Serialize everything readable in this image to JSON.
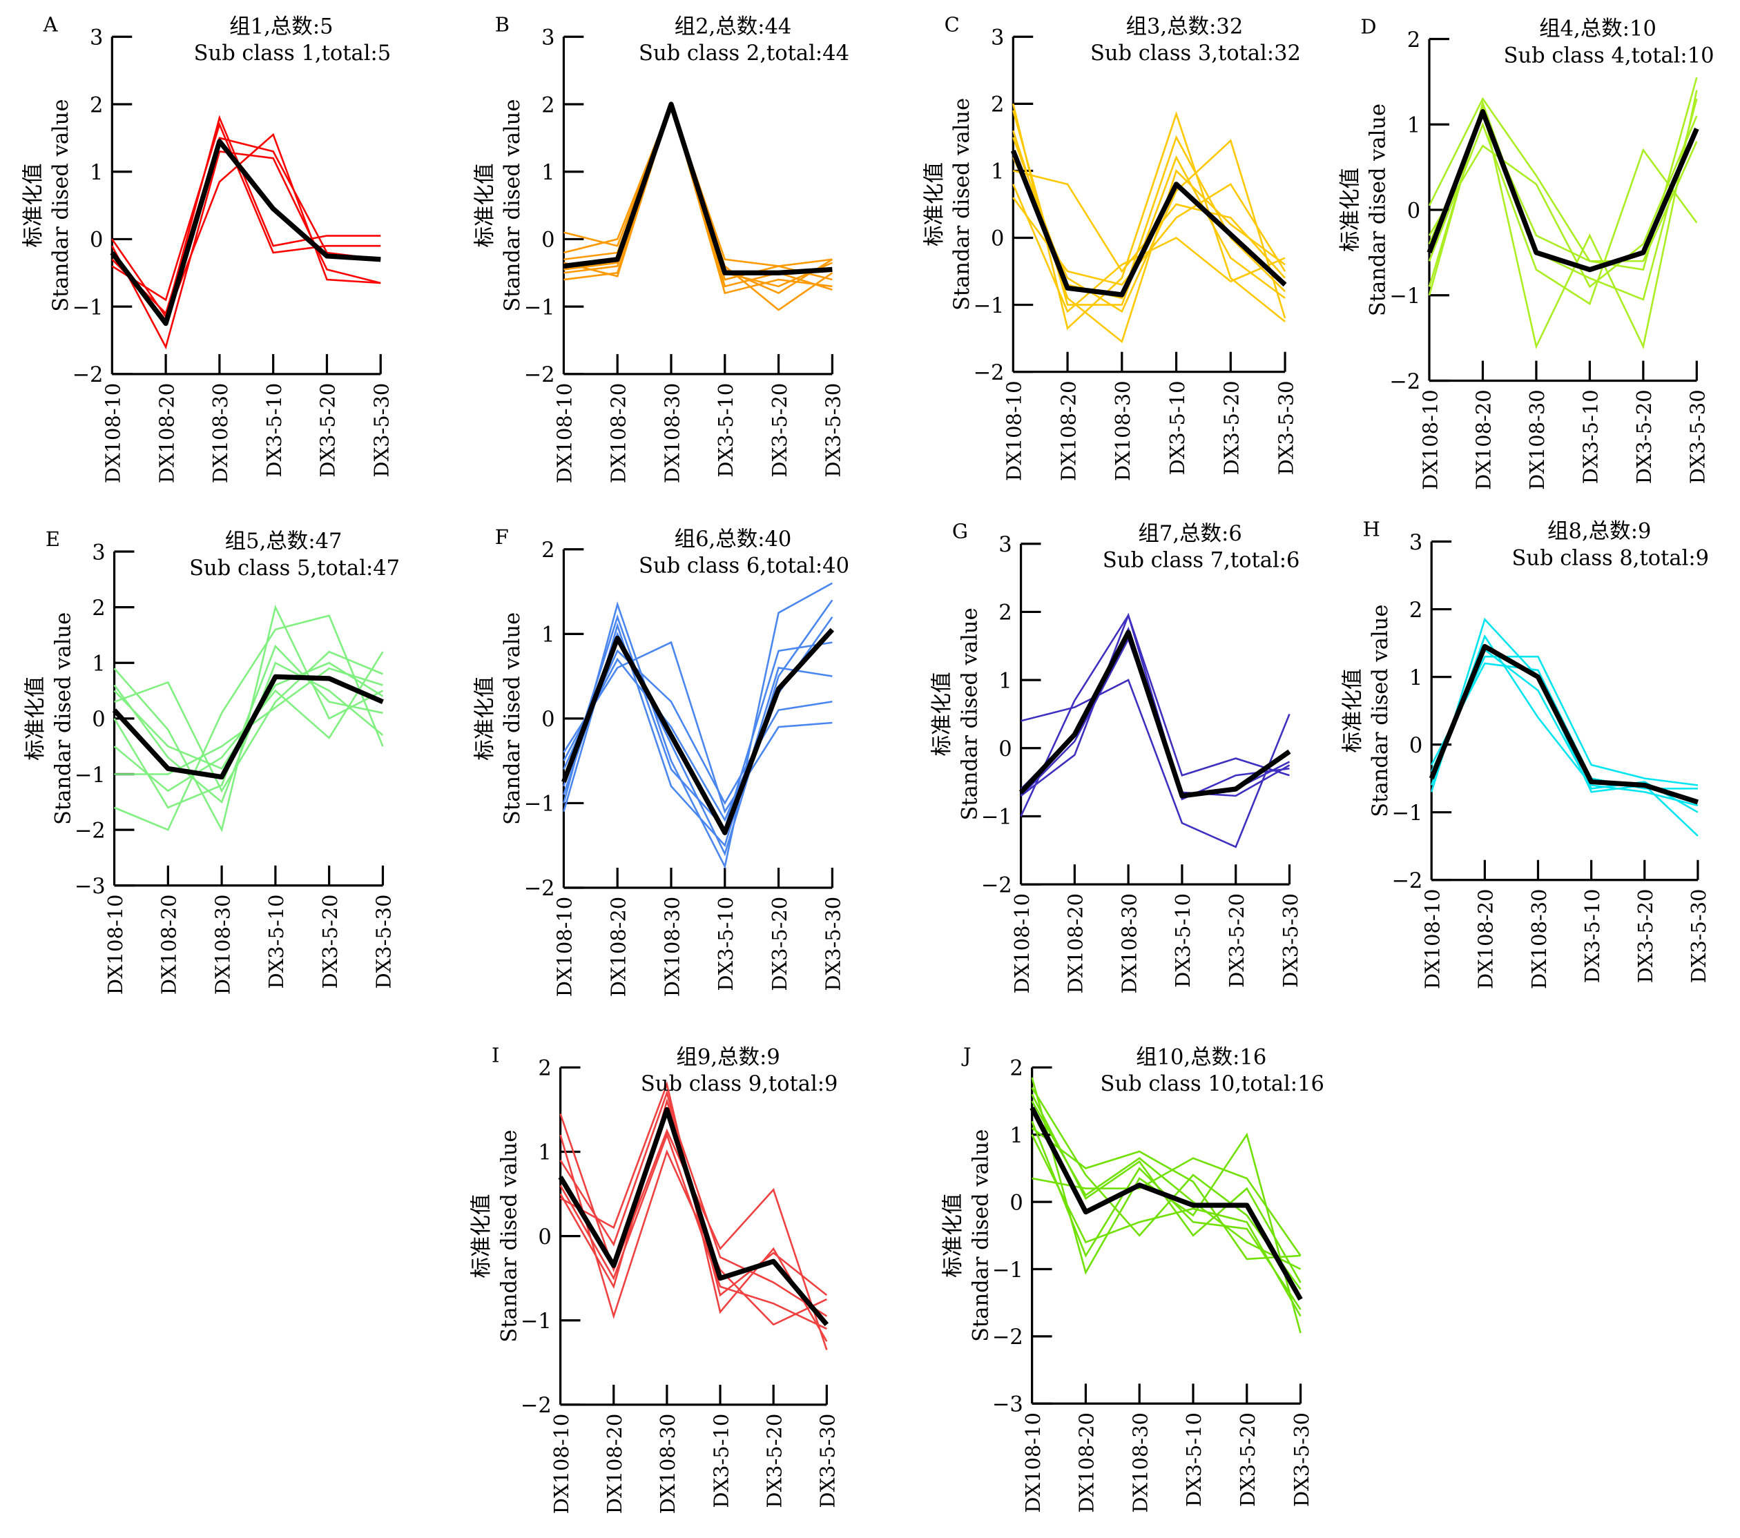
{
  "categories": [
    "DX108-10",
    "DX108-20",
    "DX108-30",
    "DX3-5-10",
    "DX3-5-20",
    "DX3-5-30"
  ],
  "ylabel_cn": "标准化值",
  "ylabel_en": "Standar dised value",
  "mean_color": "#000000",
  "chart_data": [
    {
      "type": "line",
      "letter": "A",
      "title_cn": "组1,总数:5",
      "title_en": "Sub class 1,total:5",
      "ylim": [
        -2,
        3
      ],
      "color": "#ff0000",
      "mean": [
        -0.2,
        -1.25,
        1.45,
        0.45,
        -0.25,
        -0.3
      ],
      "members": [
        [
          0,
          -1.15,
          1.8,
          -0.1,
          0.05,
          0.05
        ],
        [
          -0.4,
          -0.9,
          1.7,
          -0.2,
          -0.1,
          -0.1
        ],
        [
          -0.1,
          -1.6,
          1.3,
          1.2,
          -0.45,
          -0.65
        ],
        [
          -0.2,
          -1.2,
          0.85,
          1.55,
          -0.6,
          -0.65
        ],
        [
          -0.3,
          -1.1,
          1.5,
          1.3,
          -0.2,
          -0.3
        ]
      ]
    },
    {
      "type": "line",
      "letter": "B",
      "title_cn": "组2,总数:44",
      "title_en": "Sub class 2,total:44",
      "ylim": [
        -2,
        3
      ],
      "color": "#ff9900",
      "mean": [
        -0.4,
        -0.3,
        2.0,
        -0.5,
        -0.5,
        -0.45
      ],
      "members": [
        [
          0.1,
          -0.1,
          2.0,
          -0.3,
          -0.4,
          -0.3
        ],
        [
          -0.6,
          -0.5,
          2.0,
          -0.8,
          -0.6,
          -0.7
        ],
        [
          -0.3,
          -0.2,
          2.0,
          -0.4,
          -1.05,
          -0.5
        ],
        [
          -0.5,
          -0.4,
          1.95,
          -0.6,
          -0.4,
          -0.6
        ],
        [
          -0.2,
          0.0,
          2.0,
          -0.5,
          -0.7,
          -0.35
        ],
        [
          -0.45,
          -0.35,
          2.0,
          -0.7,
          -0.5,
          -0.75
        ],
        [
          -0.35,
          -0.55,
          2.0,
          -0.45,
          -0.8,
          -0.3
        ]
      ]
    },
    {
      "type": "line",
      "letter": "C",
      "title_cn": "组3,总数:32",
      "title_en": "Sub class 3,total:32",
      "ylim": [
        -2,
        3
      ],
      "color": "#ffc800",
      "mean": [
        1.3,
        -0.75,
        -0.85,
        0.8,
        0.05,
        -0.7
      ],
      "members": [
        [
          2.0,
          -1.35,
          -0.6,
          1.85,
          -0.6,
          -1.25
        ],
        [
          1.0,
          0.8,
          -0.5,
          0.5,
          0.3,
          -0.6
        ],
        [
          1.6,
          -0.9,
          -1.55,
          1.0,
          0.2,
          -0.4
        ],
        [
          0.8,
          -1.1,
          -0.4,
          0.0,
          -0.65,
          -0.3
        ],
        [
          1.2,
          -0.6,
          -1.1,
          0.7,
          1.45,
          -1.2
        ],
        [
          1.5,
          -0.7,
          -0.9,
          1.5,
          0.0,
          -0.8
        ],
        [
          0.6,
          -0.5,
          -0.7,
          0.3,
          0.8,
          -0.5
        ],
        [
          1.9,
          -1.0,
          -1.0,
          1.2,
          -0.3,
          -0.9
        ]
      ]
    },
    {
      "type": "line",
      "letter": "D",
      "title_cn": "组4,总数:10",
      "title_en": "Sub class 4,total:10",
      "ylim": [
        -2,
        2
      ],
      "color": "#aaee22",
      "mean": [
        -0.5,
        1.15,
        -0.5,
        -0.7,
        -0.5,
        0.95
      ],
      "members": [
        [
          0.05,
          1.3,
          0.4,
          -0.6,
          -0.7,
          1.55
        ],
        [
          -0.9,
          1.2,
          -1.6,
          -0.3,
          -1.6,
          1.4
        ],
        [
          -0.6,
          1.0,
          -0.7,
          -1.1,
          0.7,
          -0.15
        ],
        [
          -0.3,
          0.75,
          0.3,
          -0.9,
          -0.4,
          1.1
        ],
        [
          -1.0,
          1.25,
          -0.5,
          -0.8,
          -1.05,
          1.3
        ],
        [
          -0.4,
          1.1,
          -0.3,
          -0.6,
          -0.6,
          0.8
        ]
      ]
    },
    {
      "type": "line",
      "letter": "E",
      "title_cn": "组5,总数:47",
      "title_en": "Sub class 5,total:47",
      "ylim": [
        -3,
        3
      ],
      "color": "#80f080",
      "mean": [
        0.15,
        -0.9,
        -1.05,
        0.75,
        0.72,
        0.3
      ],
      "members": [
        [
          0.9,
          -0.2,
          -2.0,
          2.0,
          0.0,
          0.5
        ],
        [
          -1.6,
          -2.0,
          0.1,
          1.6,
          1.85,
          -0.5
        ],
        [
          0.3,
          0.65,
          -1.3,
          0.3,
          1.2,
          0.8
        ],
        [
          -0.5,
          -1.3,
          -0.7,
          0.5,
          -0.35,
          1.2
        ],
        [
          0.6,
          -0.7,
          -1.5,
          1.0,
          0.5,
          -0.3
        ],
        [
          -1.0,
          -1.0,
          -0.5,
          0.2,
          0.9,
          0.6
        ],
        [
          0.0,
          -1.6,
          -1.2,
          1.3,
          0.3,
          0.1
        ],
        [
          0.5,
          -0.5,
          -0.9,
          0.6,
          1.0,
          0.4
        ]
      ]
    },
    {
      "type": "line",
      "letter": "F",
      "title_cn": "组6,总数:40",
      "title_en": "Sub class 6,total:40",
      "ylim": [
        -2,
        2
      ],
      "color": "#4a86f0",
      "mean": [
        -0.75,
        0.95,
        -0.2,
        -1.35,
        0.35,
        1.05
      ],
      "members": [
        [
          -1.0,
          1.35,
          -0.5,
          -1.75,
          1.25,
          1.6
        ],
        [
          -0.4,
          0.6,
          0.9,
          -1.1,
          -0.1,
          -0.05
        ],
        [
          -1.1,
          1.1,
          -0.8,
          -1.5,
          0.6,
          0.5
        ],
        [
          -0.6,
          0.8,
          0.2,
          -1.0,
          0.1,
          0.2
        ],
        [
          -0.9,
          1.0,
          -0.3,
          -1.6,
          0.5,
          1.4
        ],
        [
          -0.5,
          0.7,
          -0.1,
          -1.2,
          0.3,
          1.2
        ],
        [
          -0.8,
          1.2,
          -0.6,
          -1.3,
          0.8,
          0.9
        ]
      ]
    },
    {
      "type": "line",
      "letter": "G",
      "title_cn": "组7,总数:6",
      "title_en": "Sub class 7,total:6",
      "ylim": [
        -2,
        3
      ],
      "color": "#3f2fc0",
      "mean": [
        -0.65,
        0.2,
        1.7,
        -0.7,
        -0.6,
        -0.05
      ],
      "members": [
        [
          0.4,
          0.6,
          1.0,
          -1.1,
          -1.45,
          0.5
        ],
        [
          -1.0,
          0.7,
          1.95,
          -0.4,
          -0.15,
          -0.4
        ],
        [
          -0.7,
          -0.1,
          1.95,
          -0.7,
          -0.6,
          -0.2
        ],
        [
          -0.6,
          0.2,
          1.75,
          -0.75,
          -0.4,
          -0.3
        ],
        [
          -0.7,
          0.1,
          1.6,
          -0.65,
          -0.7,
          -0.25
        ]
      ]
    },
    {
      "type": "line",
      "letter": "H",
      "title_cn": "组8,总数:9",
      "title_en": "Sub class 8,total:9",
      "ylim": [
        -2,
        3
      ],
      "color": "#00e5f0",
      "mean": [
        -0.5,
        1.45,
        1.0,
        -0.55,
        -0.6,
        -0.85
      ],
      "members": [
        [
          -0.7,
          1.85,
          1.0,
          -0.7,
          -0.6,
          -1.35
        ],
        [
          -0.4,
          1.3,
          1.3,
          -0.3,
          -0.5,
          -0.6
        ],
        [
          -0.6,
          1.6,
          0.4,
          -0.6,
          -0.7,
          -0.9
        ],
        [
          -0.3,
          1.2,
          1.1,
          -0.5,
          -0.65,
          -0.65
        ],
        [
          -0.5,
          1.4,
          0.8,
          -0.65,
          -0.55,
          -1.0
        ]
      ]
    },
    {
      "type": "line",
      "letter": "I",
      "title_cn": "组9,总数:9",
      "title_en": "Sub class 9,total:9",
      "ylim": [
        -2,
        2
      ],
      "color": "#f04040",
      "mean": [
        0.7,
        -0.35,
        1.5,
        -0.5,
        -0.3,
        -1.05
      ],
      "members": [
        [
          1.45,
          -0.4,
          1.25,
          -0.15,
          0.55,
          -1.35
        ],
        [
          0.45,
          0.1,
          1.8,
          -0.9,
          -0.15,
          -1.25
        ],
        [
          1.2,
          -0.95,
          1.0,
          -0.4,
          -1.05,
          -0.75
        ],
        [
          0.5,
          -0.6,
          1.6,
          -0.25,
          -0.55,
          -0.95
        ],
        [
          0.9,
          -0.1,
          1.7,
          -0.7,
          -0.2,
          -0.7
        ],
        [
          0.6,
          -0.5,
          1.2,
          -0.6,
          -0.8,
          -1.1
        ]
      ]
    },
    {
      "type": "line",
      "letter": "J",
      "title_cn": "组10,总数:16",
      "title_en": "Sub class 10,total:16",
      "ylim": [
        -3,
        2
      ],
      "color": "#70e000",
      "mean": [
        1.4,
        -0.15,
        0.25,
        -0.05,
        -0.05,
        -1.45
      ],
      "members": [
        [
          1.85,
          -1.05,
          0.35,
          -0.2,
          1.0,
          -1.95
        ],
        [
          0.35,
          0.2,
          0.2,
          0.65,
          0.35,
          -0.8
        ],
        [
          1.1,
          0.5,
          0.75,
          0.3,
          -0.85,
          -0.8
        ],
        [
          1.6,
          0.05,
          0.6,
          -0.5,
          0.2,
          -1.2
        ],
        [
          1.2,
          -0.8,
          0.5,
          -0.3,
          -0.4,
          -1.6
        ],
        [
          1.7,
          0.4,
          -0.5,
          0.4,
          -0.2,
          -1.3
        ],
        [
          1.0,
          -0.6,
          -0.3,
          -0.1,
          -0.3,
          -1.7
        ],
        [
          1.5,
          0.1,
          0.65,
          0.0,
          -0.6,
          -1.0
        ]
      ]
    }
  ]
}
